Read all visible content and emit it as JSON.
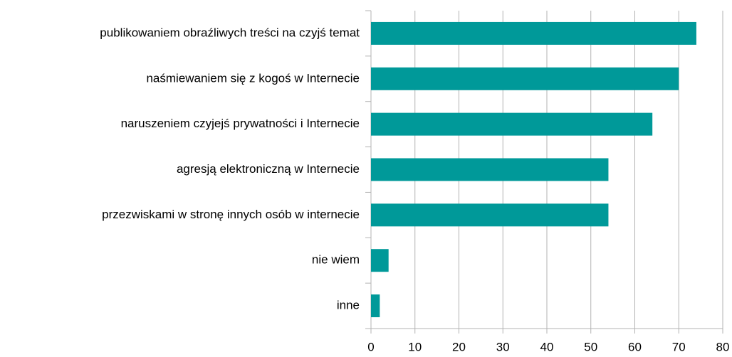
{
  "chart_data": {
    "type": "hbar",
    "categories": [
      "publikowaniem obraźliwych treści na czyjś temat",
      "naśmiewaniem się z kogoś w Internecie",
      "naruszeniem czyjejś prywatności i Internecie",
      "agresją elektroniczną w Internecie",
      "przezwiskami w stronę innych osób w internecie",
      "nie wiem",
      "inne"
    ],
    "values": [
      74,
      70,
      64,
      54,
      54,
      4,
      2
    ],
    "color": "#009999",
    "xlim": [
      0,
      80
    ],
    "xticks": [
      0,
      10,
      20,
      30,
      40,
      50,
      60,
      70,
      80
    ],
    "grid": true
  }
}
